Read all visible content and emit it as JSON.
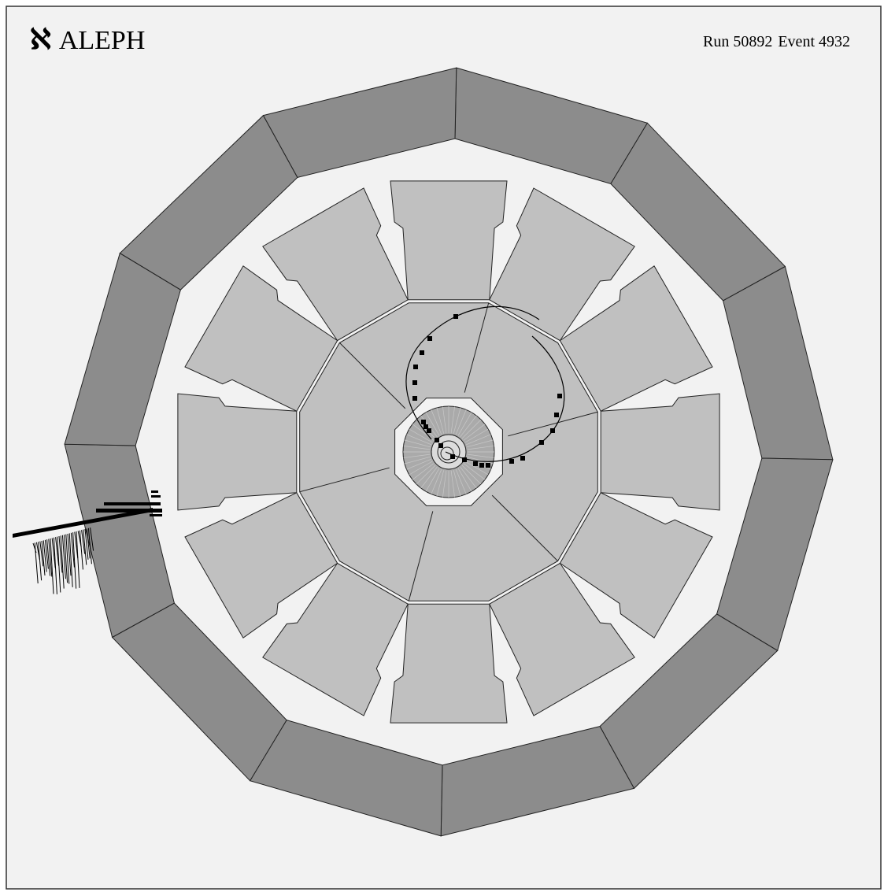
{
  "experiment": {
    "symbol": "ℵ",
    "name": "ALEPH"
  },
  "event": {
    "run_label": "Run",
    "run_number": "50892",
    "event_label": "Event",
    "event_number": "4932"
  },
  "colors": {
    "background": "#f2f2f2",
    "frame": "#333333",
    "outer_calorimeter": "#8c8c8c",
    "inner_calorimeter": "#c0c0c0",
    "gap": "#f2f2f2",
    "vertex_detector": "#aaaaaa",
    "hit": "#000000",
    "track": "#000000"
  }
}
